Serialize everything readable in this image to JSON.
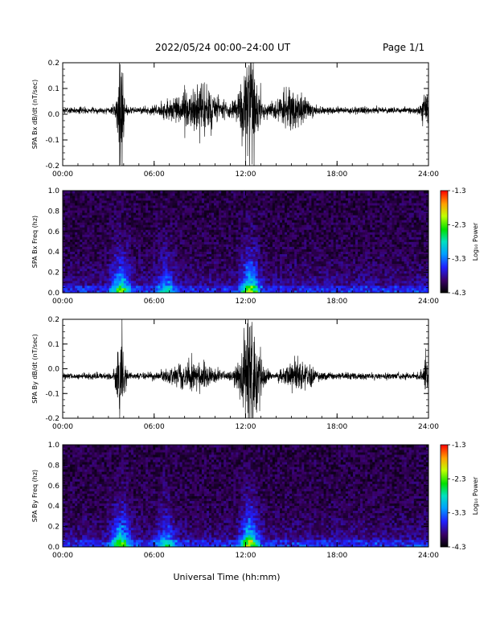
{
  "header": {
    "title": "2022/05/24  00:00–24:00 UT",
    "page": "Page 1/1"
  },
  "x_axis": {
    "ticks": [
      "00:00",
      "06:00",
      "12:00",
      "18:00",
      "24:00"
    ],
    "label": "Universal Time (hh:mm)"
  },
  "colorbar": {
    "ticks": [
      "-1.3",
      "-2.3",
      "-3.3",
      "-4.3"
    ],
    "label": "Log₁₀ Power"
  },
  "chart_data": [
    {
      "type": "line",
      "ylabel": "SPA Bx dB/dt (nT/sec)",
      "xlim": [
        0,
        24
      ],
      "ylim": [
        -0.2,
        0.2
      ],
      "yticks": [
        "0.2",
        "0.1",
        "0.0",
        "-0.1",
        "-0.2"
      ],
      "baseline": 0.015,
      "activity_bursts": [
        {
          "center_hour": 3.8,
          "width_hours": 0.5,
          "amplitude": 0.2
        },
        {
          "center_hour": 8.8,
          "width_hours": 3.5,
          "amplitude": 0.08
        },
        {
          "center_hour": 12.3,
          "width_hours": 1.2,
          "amplitude": 0.2
        },
        {
          "center_hour": 15.0,
          "width_hours": 2.0,
          "amplitude": 0.07
        },
        {
          "center_hour": 23.8,
          "width_hours": 0.5,
          "amplitude": 0.06
        }
      ]
    },
    {
      "type": "heatmap",
      "ylabel": "SPA Bx Freq (hz)",
      "xlim": [
        0,
        24
      ],
      "ylim": [
        0.0,
        1.0
      ],
      "yticks": [
        "1.0",
        "0.8",
        "0.6",
        "0.4",
        "0.2",
        "0.0"
      ],
      "zlim": [
        -4.3,
        -1.3
      ],
      "zlabel": "Log₁₀ Power",
      "power_peaks": [
        {
          "center_hour": 3.8,
          "max_log_power": -2.6
        },
        {
          "center_hour": 12.3,
          "max_log_power": -2.4
        },
        {
          "center_hour": 6.8,
          "max_log_power": -3.2
        }
      ]
    },
    {
      "type": "line",
      "ylabel": "SPA By dB/dt (nT/sec)",
      "xlim": [
        0,
        24
      ],
      "ylim": [
        -0.2,
        0.2
      ],
      "yticks": [
        "0.2",
        "0.1",
        "0.0",
        "-0.1",
        "-0.2"
      ],
      "baseline": -0.03,
      "activity_bursts": [
        {
          "center_hour": 3.8,
          "width_hours": 0.5,
          "amplitude": 0.2
        },
        {
          "center_hour": 12.3,
          "width_hours": 1.4,
          "amplitude": 0.2
        },
        {
          "center_hour": 8.5,
          "width_hours": 3.0,
          "amplitude": 0.05
        },
        {
          "center_hour": 15.5,
          "width_hours": 2.0,
          "amplitude": 0.05
        },
        {
          "center_hour": 23.8,
          "width_hours": 0.4,
          "amplitude": 0.07
        }
      ]
    },
    {
      "type": "heatmap",
      "ylabel": "SPA By Freq (hz)",
      "xlim": [
        0,
        24
      ],
      "ylim": [
        0.0,
        1.0
      ],
      "yticks": [
        "1.0",
        "0.8",
        "0.6",
        "0.4",
        "0.2",
        "0.0"
      ],
      "zlim": [
        -4.3,
        -1.3
      ],
      "zlabel": "Log₁₀ Power",
      "power_peaks": [
        {
          "center_hour": 3.8,
          "max_log_power": -2.5
        },
        {
          "center_hour": 12.3,
          "max_log_power": -2.3
        },
        {
          "center_hour": 6.8,
          "max_log_power": -3.1
        }
      ]
    }
  ]
}
